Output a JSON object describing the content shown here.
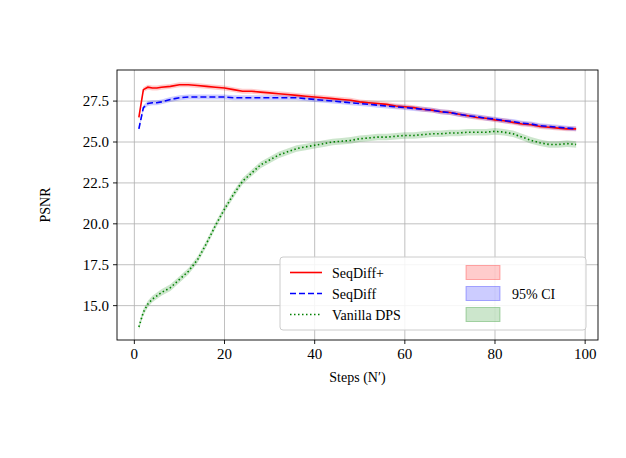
{
  "chart_data": {
    "type": "line",
    "x_label": "Steps (N′)",
    "y_label": "PSNR",
    "x": [
      1,
      2,
      3,
      4,
      5,
      6,
      8,
      10,
      12,
      14,
      16,
      18,
      20,
      22,
      24,
      26,
      28,
      30,
      32,
      34,
      36,
      38,
      40,
      42,
      44,
      46,
      48,
      50,
      52,
      54,
      56,
      58,
      60,
      62,
      64,
      66,
      68,
      70,
      72,
      74,
      76,
      78,
      80,
      82,
      84,
      86,
      88,
      90,
      92,
      94,
      96,
      98
    ],
    "series": [
      {
        "name": "SeqDiff+",
        "color": "#ff0000",
        "line_style": "solid",
        "error": 0.15,
        "values": [
          26.5,
          28.2,
          28.35,
          28.3,
          28.3,
          28.35,
          28.4,
          28.5,
          28.5,
          28.45,
          28.4,
          28.35,
          28.3,
          28.2,
          28.1,
          28.1,
          28.05,
          28.0,
          27.95,
          27.9,
          27.85,
          27.8,
          27.75,
          27.7,
          27.65,
          27.6,
          27.55,
          27.45,
          27.4,
          27.35,
          27.3,
          27.2,
          27.15,
          27.1,
          27.0,
          26.95,
          26.85,
          26.8,
          26.7,
          26.6,
          26.5,
          26.45,
          26.35,
          26.3,
          26.2,
          26.1,
          26.05,
          25.95,
          25.9,
          25.85,
          25.8,
          25.8
        ]
      },
      {
        "name": "SeqDiff",
        "color": "#0000ff",
        "line_style": "dashed",
        "error": 0.15,
        "values": [
          25.8,
          27.1,
          27.35,
          27.4,
          27.4,
          27.45,
          27.6,
          27.7,
          27.75,
          27.75,
          27.75,
          27.75,
          27.75,
          27.7,
          27.7,
          27.7,
          27.7,
          27.7,
          27.7,
          27.7,
          27.7,
          27.65,
          27.6,
          27.55,
          27.5,
          27.45,
          27.4,
          27.35,
          27.3,
          27.25,
          27.2,
          27.15,
          27.1,
          27.05,
          27.0,
          26.95,
          26.85,
          26.8,
          26.7,
          26.6,
          26.55,
          26.45,
          26.4,
          26.3,
          26.25,
          26.15,
          26.1,
          26.0,
          25.95,
          25.9,
          25.85,
          25.8
        ]
      },
      {
        "name": "Vanilla DPS",
        "color": "#008000",
        "line_style": "dotted",
        "error": 0.2,
        "values": [
          13.7,
          14.6,
          15.1,
          15.4,
          15.6,
          15.8,
          16.1,
          16.6,
          17.1,
          17.8,
          18.8,
          19.9,
          20.9,
          21.8,
          22.6,
          23.1,
          23.6,
          23.9,
          24.2,
          24.4,
          24.6,
          24.7,
          24.8,
          24.9,
          25.0,
          25.05,
          25.1,
          25.2,
          25.25,
          25.3,
          25.3,
          25.35,
          25.4,
          25.4,
          25.45,
          25.5,
          25.5,
          25.55,
          25.55,
          25.6,
          25.6,
          25.6,
          25.65,
          25.6,
          25.5,
          25.3,
          25.1,
          24.95,
          24.85,
          24.85,
          24.9,
          24.85
        ]
      }
    ],
    "ci_label": "95% CI",
    "xlim": [
      -3.85,
      102.85
    ],
    "xticks": [
      0,
      20,
      40,
      60,
      80,
      100
    ],
    "ylim": [
      12.9,
      29.4
    ],
    "yticks": [
      {
        "value": 15,
        "label": "15.0"
      },
      17.5,
      {
        "value": 20,
        "label": "20.0"
      },
      22.5,
      {
        "value": 25,
        "label": "25.0"
      },
      27.5
    ],
    "grid": true,
    "legend": "lower right"
  }
}
